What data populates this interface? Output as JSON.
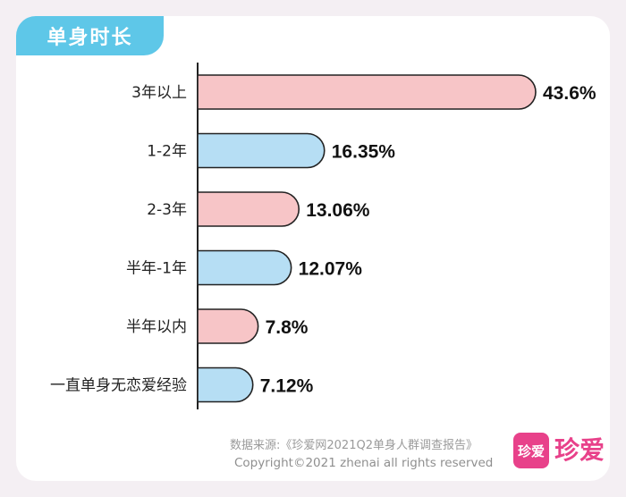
{
  "header": {
    "title": "单身时长"
  },
  "chart_data": {
    "type": "bar",
    "orientation": "horizontal",
    "categories": [
      "3年以上",
      "1-2年",
      "2-3年",
      "半年-1年",
      "半年以内",
      "一直单身无恋爱经验"
    ],
    "values": [
      43.6,
      16.35,
      13.06,
      12.07,
      7.8,
      7.12
    ],
    "value_labels": [
      "43.6%",
      "16.35%",
      "13.06%",
      "12.07%",
      "7.8%",
      "7.12%"
    ],
    "xlim": [
      0,
      43.6
    ],
    "colors": [
      "#f7c5c7",
      "#b6def4",
      "#f7c5c7",
      "#b6def4",
      "#f7c5c7",
      "#b6def4"
    ],
    "title": "单身时长"
  },
  "footer": {
    "source": "数据来源:《珍爱网2021Q2单身人群调查报告》",
    "copyright": "Copyright©2021  zhenai  all rights reserved",
    "logo_box_text": "珍爱",
    "logo_text": "珍爱"
  },
  "colors": {
    "accent": "#5ec7e8",
    "brand": "#e8418a",
    "bar_pink": "#f7c5c7",
    "bar_blue": "#b6def4"
  }
}
